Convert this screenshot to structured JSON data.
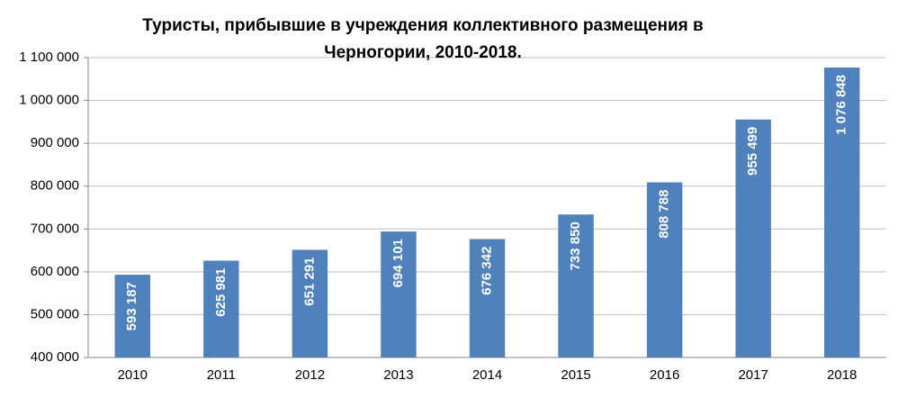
{
  "chart_data": {
    "type": "bar",
    "title": "Туристы, прибывшие в учреждения коллективного размещения в Черногории, 2010-2018.",
    "categories": [
      "2010",
      "2011",
      "2012",
      "2013",
      "2014",
      "2015",
      "2016",
      "2017",
      "2018"
    ],
    "values": [
      593187,
      625981,
      651291,
      694101,
      676342,
      733850,
      808788,
      955499,
      1076848
    ],
    "value_labels": [
      "593 187",
      "625 981",
      "651 291",
      "694 101",
      "676 342",
      "733 850",
      "808 788",
      "955 499",
      "1 076 848"
    ],
    "color": "#4f81bd",
    "ylim": [
      400000,
      1100000
    ],
    "yticks": [
      {
        "value": 400000,
        "label": "400 000"
      },
      {
        "value": 500000,
        "label": "500 000"
      },
      {
        "value": 600000,
        "label": "600 000"
      },
      {
        "value": 700000,
        "label": "700 000"
      },
      {
        "value": 800000,
        "label": "800 000"
      },
      {
        "value": 900000,
        "label": "900 000"
      },
      {
        "value": 1000000,
        "label": "1 000 000"
      },
      {
        "value": 1100000,
        "label": "1 100 000"
      }
    ],
    "grid": true
  }
}
